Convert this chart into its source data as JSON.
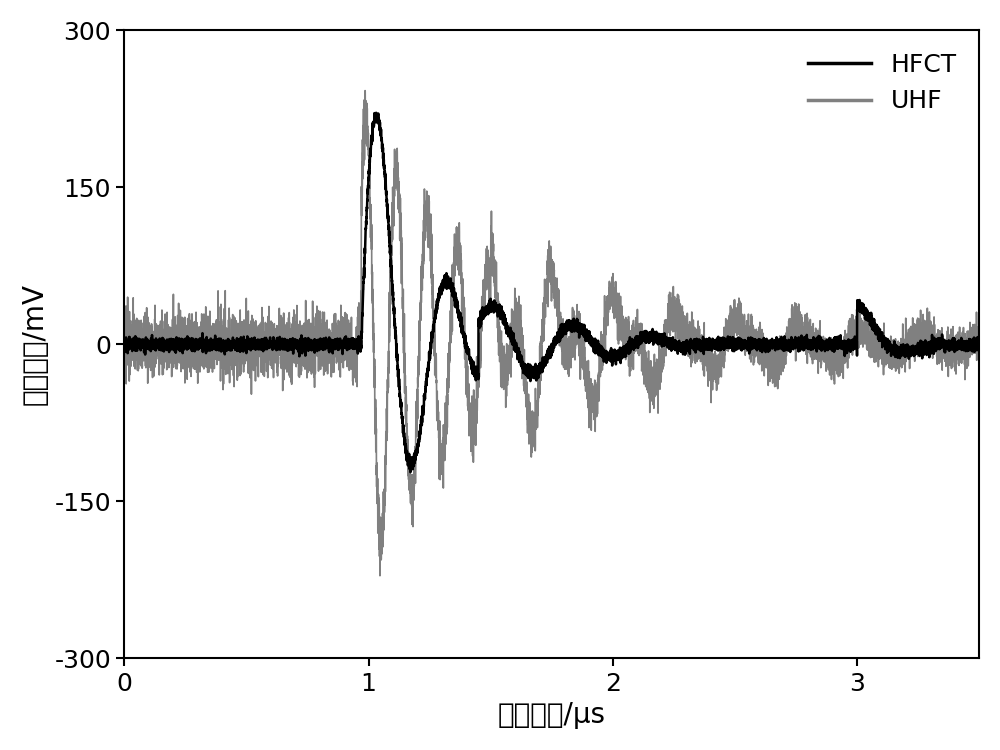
{
  "title": "",
  "xlabel": "时间序列/μs",
  "ylabel": "信号幅値/mV",
  "xlim": [
    0,
    3.5
  ],
  "ylim": [
    -300,
    300
  ],
  "xticks": [
    0,
    1,
    2,
    3
  ],
  "yticks": [
    -300,
    -150,
    0,
    150,
    300
  ],
  "hfct_color": "#000000",
  "uhf_color": "#808080",
  "legend_labels": [
    "HFCT",
    "UHF"
  ],
  "background_color": "#ffffff",
  "hfct_linewidth": 1.8,
  "uhf_linewidth": 1.2,
  "sample_rate": 8000,
  "duration": 3.5
}
